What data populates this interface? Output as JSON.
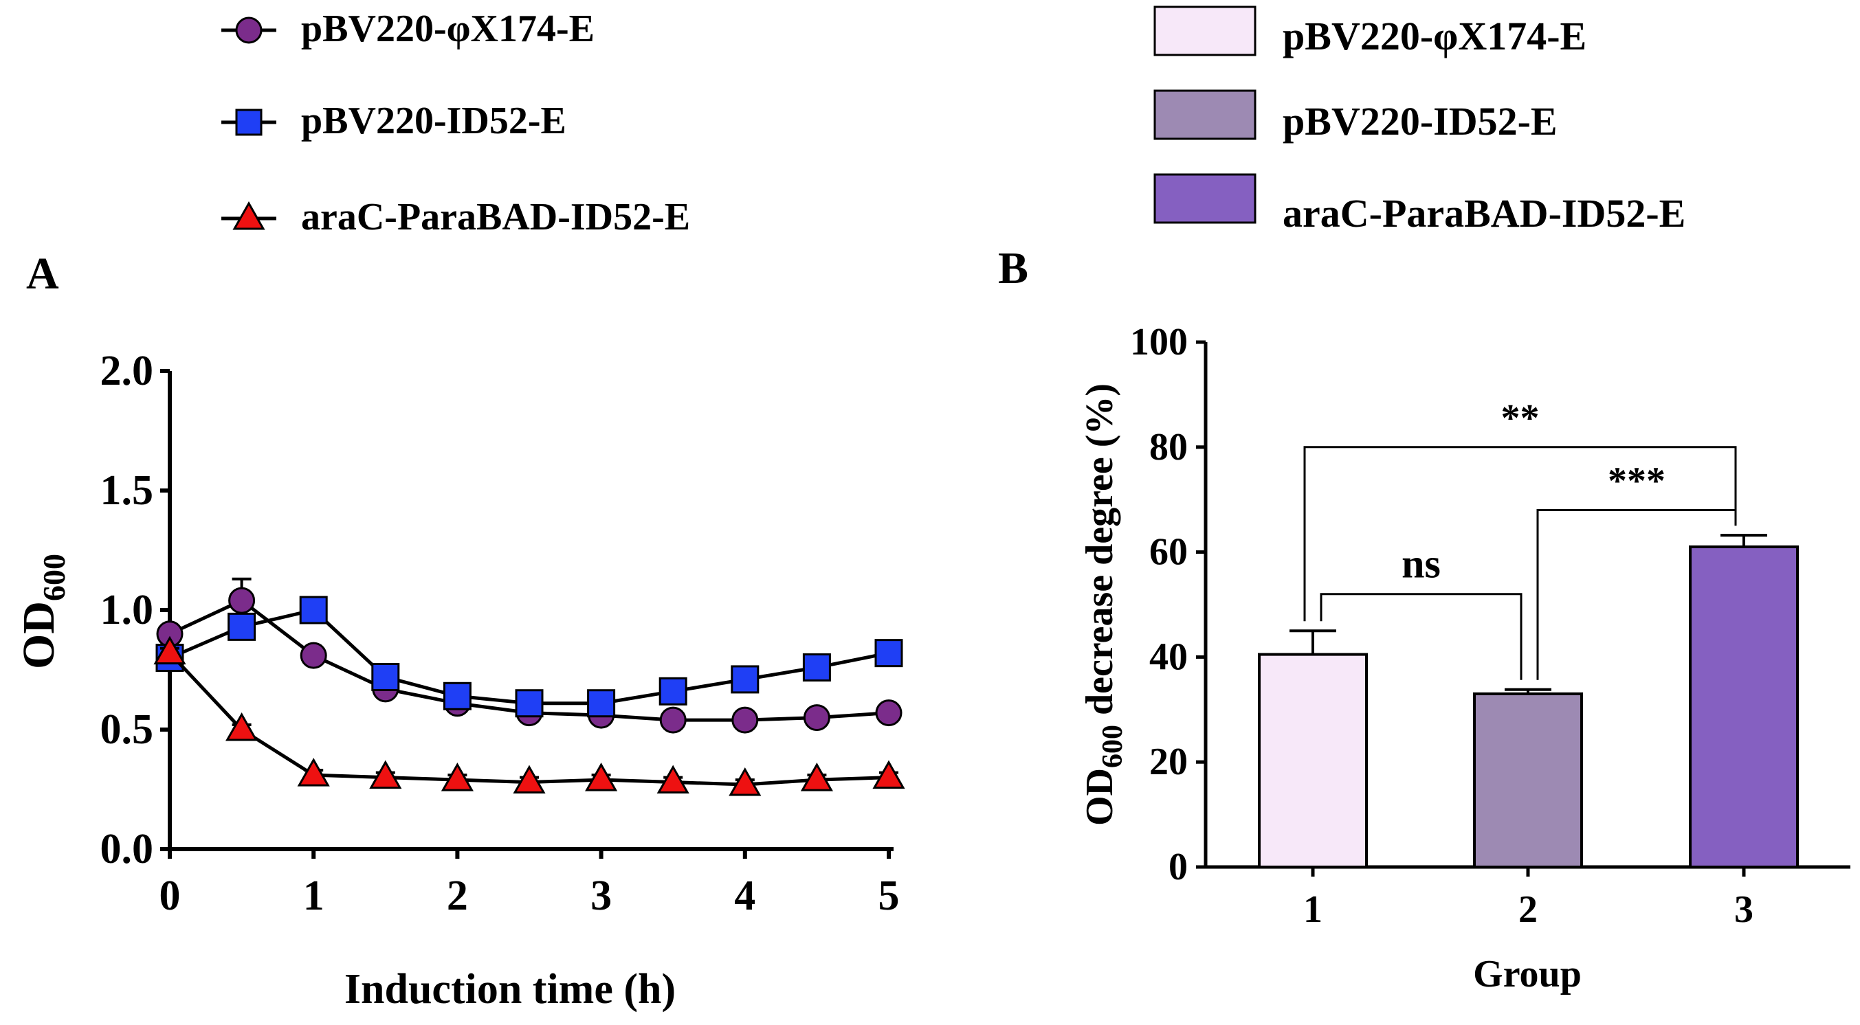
{
  "chart_data": [
    {
      "panel": "A",
      "type": "line",
      "xlabel": "Induction time (h)",
      "ylabel": "OD",
      "ylabel_sub": "600",
      "xlim": [
        0,
        5
      ],
      "ylim": [
        0,
        2.0
      ],
      "xticks": [
        "0",
        "1",
        "2",
        "3",
        "4",
        "5"
      ],
      "yticks": [
        "0.0",
        "0.5",
        "1.0",
        "1.5",
        "2.0"
      ],
      "x": [
        0,
        0.5,
        1,
        1.5,
        2,
        2.5,
        3,
        3.5,
        4,
        4.5,
        5
      ],
      "series": [
        {
          "name": "pBV220-φX174-E",
          "marker": "circle",
          "color": "#7b2c8b",
          "values": [
            0.9,
            1.04,
            0.81,
            0.67,
            0.61,
            0.57,
            0.56,
            0.54,
            0.54,
            0.55,
            0.57
          ],
          "errors": [
            0.03,
            0.09,
            0.02,
            0.03,
            0.02,
            0.05,
            0.02,
            0.02,
            0.02,
            0.02,
            0.02
          ]
        },
        {
          "name": "pBV220-ID52-E",
          "marker": "square",
          "color": "#1f3ff5",
          "values": [
            0.8,
            0.93,
            1.0,
            0.72,
            0.64,
            0.61,
            0.61,
            0.66,
            0.71,
            0.76,
            0.82
          ],
          "errors": [
            0.02,
            0.05,
            0.02,
            0.02,
            0.02,
            0.02,
            0.02,
            0.02,
            0.02,
            0.02,
            0.02
          ]
        },
        {
          "name": "araC-ParaBAD-ID52-E",
          "marker": "triangle",
          "color": "#ee1111",
          "values": [
            0.82,
            0.5,
            0.31,
            0.3,
            0.29,
            0.28,
            0.29,
            0.28,
            0.27,
            0.29,
            0.3
          ],
          "errors": [
            0.02,
            0.02,
            0.02,
            0.02,
            0.02,
            0.02,
            0.02,
            0.02,
            0.02,
            0.02,
            0.02
          ]
        }
      ]
    },
    {
      "panel": "B",
      "type": "bar",
      "xlabel": "Group",
      "ylabel": "OD",
      "ylabel_sub": "600",
      "ylabel_rest": " decrease degree (%)",
      "ylim": [
        0,
        100
      ],
      "yticks": [
        "0",
        "20",
        "40",
        "60",
        "80",
        "100"
      ],
      "categories": [
        "1",
        "2",
        "3"
      ],
      "values": [
        40.5,
        33,
        61
      ],
      "errors": [
        4.5,
        0.8,
        2.2
      ],
      "bar_colors": [
        "#f7e8f9",
        "#9d8ab3",
        "#8560c1"
      ],
      "legend": [
        "pBV220-φX174-E",
        "pBV220-ID52-E",
        "araC-ParaBAD-ID52-E"
      ],
      "significance": [
        {
          "from": 1,
          "to": 2,
          "label": "ns",
          "y": 52
        },
        {
          "from": 2,
          "to": 3,
          "label": "***",
          "y": 68
        },
        {
          "from": 1,
          "to": 3,
          "label": "**",
          "y": 80
        }
      ]
    }
  ]
}
